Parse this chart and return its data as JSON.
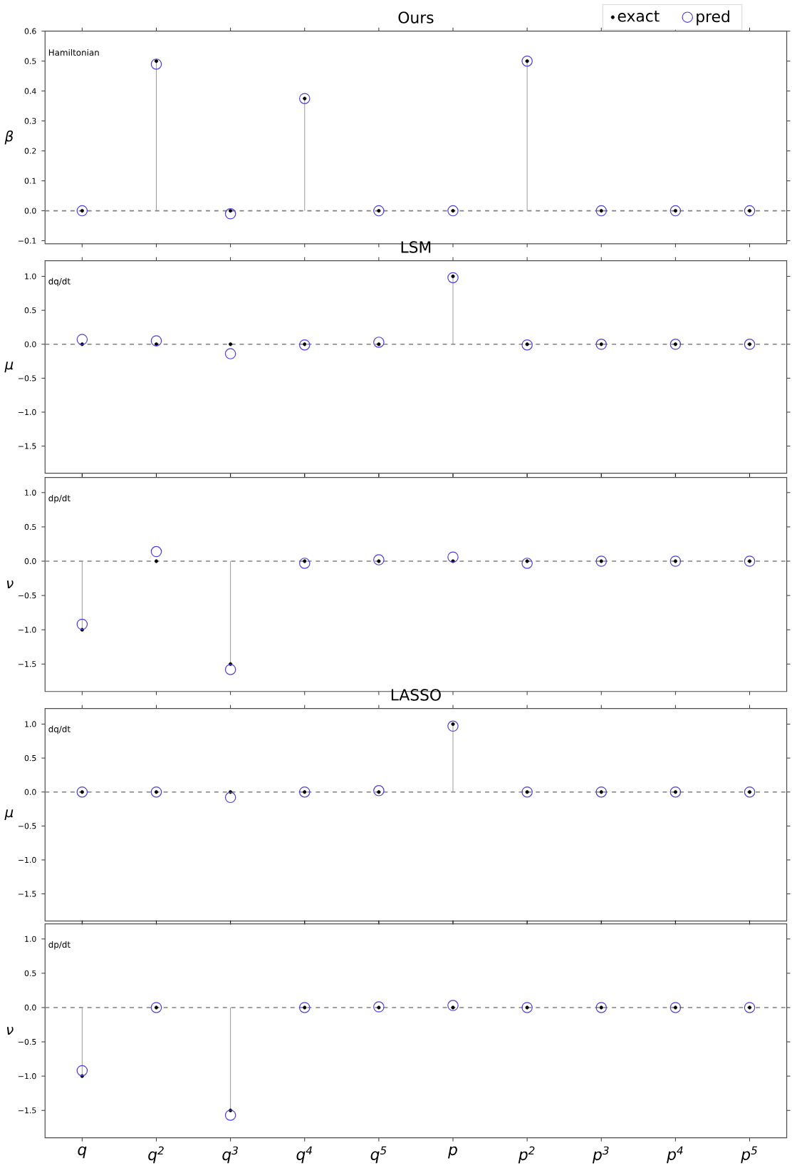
{
  "chart_data": [
    {
      "type": "lollipop",
      "title": "Ours",
      "ylabel": "β",
      "annotations": [
        "Hamiltonian"
      ],
      "categories": [
        null,
        null,
        null,
        null,
        null,
        null,
        null,
        null,
        null,
        null
      ],
      "ylim": [
        -0.11,
        0.6
      ],
      "yticks": [
        {
          "value": -0.1,
          "label": "−0.1"
        },
        {
          "value": 0,
          "label": "0.0"
        },
        {
          "value": 0.1,
          "label": "0.1"
        },
        {
          "value": 0.2,
          "label": "0.2"
        },
        {
          "value": 0.3,
          "label": "0.3"
        },
        {
          "value": 0.4,
          "label": "0.4"
        },
        {
          "value": 0.5,
          "label": "0.5"
        },
        {
          "value": 0.6,
          "label": "0.6"
        }
      ],
      "legend": "top right",
      "ref_lines": [
        {
          "axis": "y",
          "value": 0,
          "color": "#808080",
          "line_style": "dashed"
        }
      ],
      "series": [
        {
          "name": "exact",
          "marker": "circle",
          "color": "#000000",
          "values": [
            0,
            0.5,
            0,
            0.375,
            0,
            0,
            0.5,
            0,
            0,
            0
          ]
        },
        {
          "name": "pred",
          "type": "scatter",
          "marker": "circle",
          "color": "#4a3fd6",
          "values": [
            0,
            0.49,
            -0.01,
            0.375,
            0,
            0,
            0.5,
            0,
            0,
            0
          ]
        }
      ]
    },
    {
      "type": "lollipop",
      "title": "LSM",
      "ylabel": "μ",
      "annotations": [
        "dq/dt"
      ],
      "categories": [
        null,
        null,
        null,
        null,
        null,
        null,
        null,
        null,
        null,
        null
      ],
      "ylim": [
        -1.9,
        1.23
      ],
      "yticks": [
        {
          "value": -1.5,
          "label": "−1.5"
        },
        {
          "value": -1,
          "label": "−1.0"
        },
        {
          "value": -0.5,
          "label": "−0.5"
        },
        {
          "value": 0,
          "label": "0.0"
        },
        {
          "value": 0.5,
          "label": "0.5"
        },
        {
          "value": 1,
          "label": "1.0"
        }
      ],
      "ref_lines": [
        {
          "axis": "y",
          "value": 0,
          "color": "#808080",
          "line_style": "dashed"
        }
      ],
      "series": [
        {
          "marker": "circle",
          "color": "#000000",
          "values": [
            0,
            0,
            0,
            0,
            0,
            1,
            0,
            0,
            0,
            0
          ]
        },
        {
          "type": "scatter",
          "marker": "circle",
          "color": "#4a3fd6",
          "values": [
            0.07,
            0.05,
            -0.14,
            -0.01,
            0.03,
            0.98,
            -0.01,
            0,
            0,
            0
          ]
        }
      ]
    },
    {
      "type": "lollipop",
      "ylabel": "ν",
      "annotations": [
        "dp/dt"
      ],
      "categories": [
        null,
        null,
        null,
        null,
        null,
        null,
        null,
        null,
        null,
        null
      ],
      "ylim": [
        -1.9,
        1.22
      ],
      "yticks": [
        {
          "value": -1.5,
          "label": "−1.5"
        },
        {
          "value": -1,
          "label": "−1.0"
        },
        {
          "value": -0.5,
          "label": "−0.5"
        },
        {
          "value": 0,
          "label": "0.0"
        },
        {
          "value": 0.5,
          "label": "0.5"
        },
        {
          "value": 1,
          "label": "1.0"
        }
      ],
      "ref_lines": [
        {
          "axis": "y",
          "value": 0,
          "color": "#808080",
          "line_style": "dashed"
        }
      ],
      "series": [
        {
          "marker": "circle",
          "color": "#000000",
          "values": [
            -1,
            0,
            -1.5,
            0,
            0,
            0,
            0,
            0,
            0,
            0
          ]
        },
        {
          "type": "scatter",
          "marker": "circle",
          "color": "#4a3fd6",
          "values": [
            -0.92,
            0.14,
            -1.58,
            -0.03,
            0.02,
            0.06,
            -0.03,
            0,
            0,
            0
          ]
        }
      ]
    },
    {
      "type": "lollipop",
      "title": "LASSO",
      "ylabel": "μ",
      "annotations": [
        "dq/dt"
      ],
      "categories": [
        null,
        null,
        null,
        null,
        null,
        null,
        null,
        null,
        null,
        null
      ],
      "ylim": [
        -1.9,
        1.23
      ],
      "yticks": [
        {
          "value": -1.5,
          "label": "−1.5"
        },
        {
          "value": -1,
          "label": "−1.0"
        },
        {
          "value": -0.5,
          "label": "−0.5"
        },
        {
          "value": 0,
          "label": "0.0"
        },
        {
          "value": 0.5,
          "label": "0.5"
        },
        {
          "value": 1,
          "label": "1.0"
        }
      ],
      "ref_lines": [
        {
          "axis": "y",
          "value": 0,
          "color": "#808080",
          "line_style": "dashed"
        }
      ],
      "series": [
        {
          "marker": "circle",
          "color": "#000000",
          "values": [
            0,
            0,
            0,
            0,
            0,
            1,
            0,
            0,
            0,
            0
          ]
        },
        {
          "type": "scatter",
          "marker": "circle",
          "color": "#4a3fd6",
          "values": [
            0,
            0,
            -0.08,
            0,
            0.02,
            0.97,
            0,
            0,
            0,
            0
          ]
        }
      ]
    },
    {
      "type": "lollipop",
      "ylabel": "ν",
      "annotations": [
        "dp/dt"
      ],
      "categories": [
        "q",
        "q$^{2}$",
        "q$^{3}$",
        "q$^{4}$",
        "q$^{5}$",
        "p",
        "p$^{2}$",
        "p$^{3}$",
        "p$^{4}$",
        "p$^{5}$"
      ],
      "ylim": [
        -1.9,
        1.22
      ],
      "yticks": [
        {
          "value": -1.5,
          "label": "−1.5"
        },
        {
          "value": -1,
          "label": "−1.0"
        },
        {
          "value": -0.5,
          "label": "−0.5"
        },
        {
          "value": 0,
          "label": "0.0"
        },
        {
          "value": 0.5,
          "label": "0.5"
        },
        {
          "value": 1,
          "label": "1.0"
        }
      ],
      "ref_lines": [
        {
          "axis": "y",
          "value": 0,
          "color": "#808080",
          "line_style": "dashed"
        }
      ],
      "series": [
        {
          "marker": "circle",
          "color": "#000000",
          "values": [
            -1,
            0,
            -1.5,
            0,
            0,
            0,
            0,
            0,
            0,
            0
          ]
        },
        {
          "type": "scatter",
          "marker": "circle",
          "color": "#4a3fd6",
          "values": [
            -0.92,
            0,
            -1.57,
            0,
            0.01,
            0.03,
            0,
            0,
            0,
            0
          ]
        }
      ]
    }
  ]
}
